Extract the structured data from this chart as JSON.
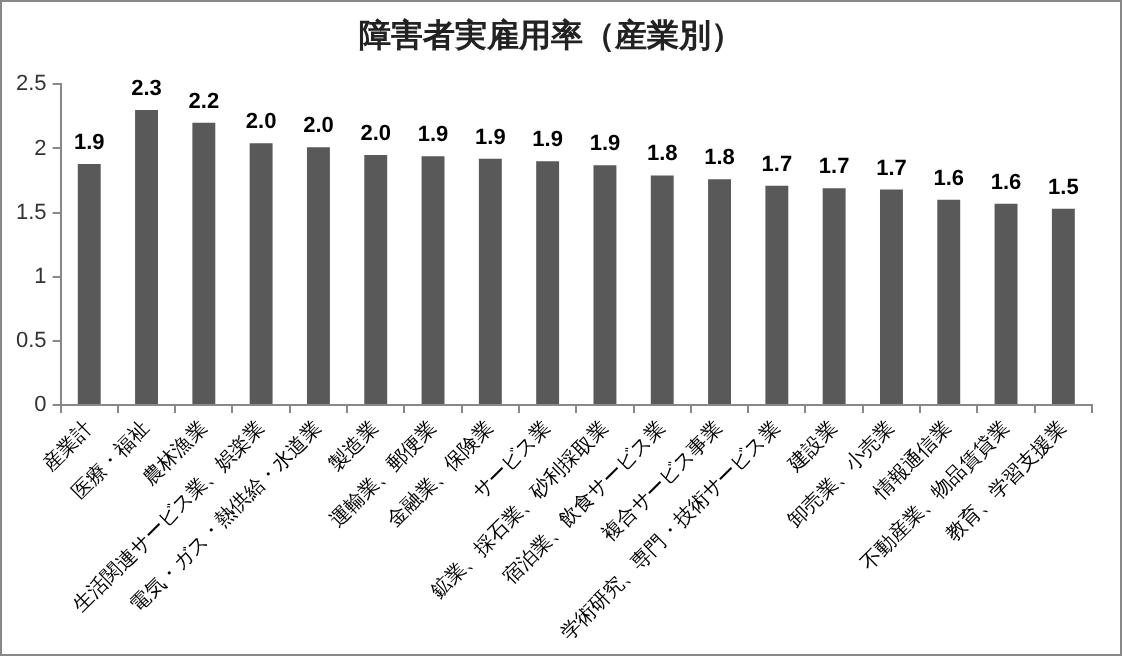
{
  "chart_data": {
    "type": "bar",
    "title": "障害者実雇用率（産業別）",
    "categories": [
      "産業計",
      "医療・福祉",
      "農林漁業",
      "生活関連サービス業、娯楽業",
      "電気・ガス・熱供給・水道業",
      "製造業",
      "運輸業、郵便業",
      "金融業、保険業",
      "サービス業",
      "鉱業、採石業、砂利採取業",
      "宿泊業、飲食サービス業",
      "複合サービス事業",
      "学術研究、専門・技術サービス業",
      "建設業",
      "卸売業、小売業",
      "情報通信業",
      "不動産業、物品賃貸業",
      "教育、学習支援業"
    ],
    "values": [
      1.88,
      2.3,
      2.2,
      2.04,
      2.01,
      1.95,
      1.94,
      1.92,
      1.9,
      1.87,
      1.79,
      1.76,
      1.71,
      1.69,
      1.68,
      1.6,
      1.57,
      1.53
    ],
    "value_labels": [
      "1.9",
      "2.3",
      "2.2",
      "2.0",
      "2.0",
      "2.0",
      "1.9",
      "1.9",
      "1.9",
      "1.9",
      "1.8",
      "1.8",
      "1.7",
      "1.7",
      "1.7",
      "1.6",
      "1.6",
      "1.5"
    ],
    "color": "#595959",
    "ylim": [
      0,
      2.5
    ],
    "yticks": [
      0,
      0.5,
      1,
      1.5,
      2,
      2.5
    ],
    "grid": false,
    "legend": false
  }
}
